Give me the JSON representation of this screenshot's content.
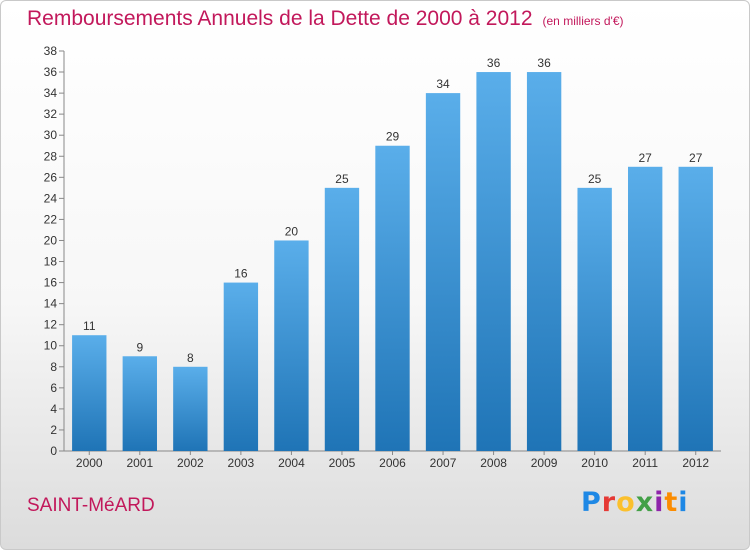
{
  "header": {
    "title": "Remboursements Annuels de la Dette de 2000 à 2012",
    "subtitle": "(en milliers d'€)"
  },
  "footer": {
    "town": "SAINT-MéARD",
    "brand": "Proxiti",
    "brand_letters": [
      {
        "char": "P",
        "color": "#1e88e5"
      },
      {
        "char": "r",
        "color": "#e53935"
      },
      {
        "char": "o",
        "color": "#fbc02d"
      },
      {
        "char": "x",
        "color": "#43a047"
      },
      {
        "char": "i",
        "color": "#8e24aa"
      },
      {
        "char": "t",
        "color": "#fb8c00"
      },
      {
        "char": "i",
        "color": "#1e88e5"
      }
    ]
  },
  "chart_data": {
    "type": "bar",
    "title": "Remboursements Annuels de la Dette de 2000 à 2012",
    "categories": [
      "2000",
      "2001",
      "2002",
      "2003",
      "2004",
      "2005",
      "2006",
      "2007",
      "2008",
      "2009",
      "2010",
      "2011",
      "2012"
    ],
    "values": [
      11,
      9,
      8,
      16,
      20,
      25,
      29,
      34,
      36,
      36,
      25,
      27,
      27
    ],
    "ylim": [
      0,
      38
    ],
    "ytick_step": 2,
    "grid": false,
    "bar_color_top": "#5aaeea",
    "bar_color_bottom": "#1f74b6",
    "title_color": "#c2185b"
  }
}
